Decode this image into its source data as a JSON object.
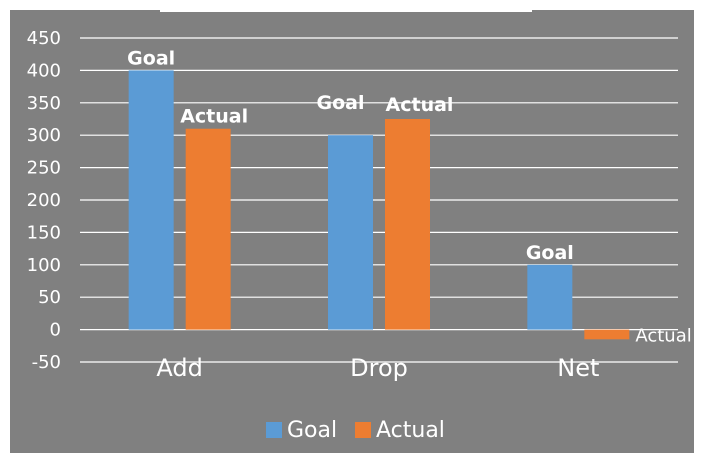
{
  "chart_data": {
    "type": "bar",
    "title": "",
    "xlabel": "",
    "ylabel": "",
    "categories": [
      "Add",
      "Drop",
      "Net"
    ],
    "series": [
      {
        "name": "Goal",
        "values": [
          400,
          300,
          100
        ],
        "color": "#5b9bd5",
        "data_labels": [
          "Goal",
          "Goal",
          "Goal"
        ]
      },
      {
        "name": "Actual",
        "values": [
          310,
          325,
          -15
        ],
        "color": "#ed7d31",
        "data_labels": [
          "Actual",
          "Actual",
          "Actual"
        ]
      }
    ],
    "ylim": [
      -50,
      450
    ],
    "yticks": [
      450,
      400,
      350,
      300,
      250,
      200,
      150,
      100,
      50,
      0,
      -50
    ],
    "grid": true,
    "legend_position": "bottom",
    "background_color": "#808080",
    "gridline_color": "#ffffff",
    "text_color": "#ffffff"
  }
}
